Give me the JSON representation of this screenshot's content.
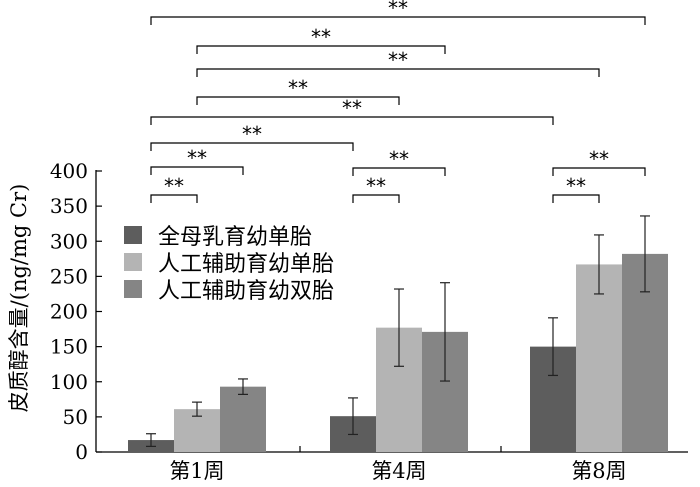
{
  "chart_data": {
    "type": "bar",
    "title": "",
    "xlabel": "",
    "ylabel": "皮质醇含量/(ng/mg Cr)",
    "ylim": [
      0,
      400
    ],
    "yticks": [
      0,
      50,
      100,
      150,
      200,
      250,
      300,
      350,
      400
    ],
    "categories": [
      "第1周",
      "第4周",
      "第8周"
    ],
    "series": [
      {
        "name": "全母乳育幼单胎",
        "color": "#5d5d5d",
        "values": [
          17,
          51,
          150
        ],
        "errors": [
          9,
          26,
          41
        ]
      },
      {
        "name": "人工辅助育幼单胎",
        "color": "#b4b4b4",
        "values": [
          61,
          177,
          267
        ],
        "errors": [
          10,
          55,
          42
        ]
      },
      {
        "name": "人工辅助育幼双胎",
        "color": "#858585",
        "values": [
          93,
          171,
          282
        ],
        "errors": [
          11,
          70,
          54
        ]
      }
    ],
    "significance_label": "**",
    "significance_brackets": [
      {
        "from": [
          0,
          0
        ],
        "to": [
          2,
          2
        ],
        "label": "**"
      },
      {
        "from": [
          0,
          1
        ],
        "to": [
          1,
          2
        ],
        "label": "**"
      },
      {
        "from": [
          0,
          1
        ],
        "to": [
          2,
          1
        ],
        "label": "**"
      },
      {
        "from": [
          0,
          1
        ],
        "to": [
          1,
          1
        ],
        "label": "**"
      },
      {
        "from": [
          0,
          0
        ],
        "to": [
          2,
          0
        ],
        "label": "**"
      },
      {
        "from": [
          0,
          0
        ],
        "to": [
          1,
          0
        ],
        "label": "**"
      },
      {
        "from": [
          0,
          0
        ],
        "to": [
          0,
          2
        ],
        "label": "**"
      },
      {
        "from": [
          0,
          0
        ],
        "to": [
          0,
          1
        ],
        "label": "**"
      },
      {
        "from": [
          1,
          0
        ],
        "to": [
          1,
          2
        ],
        "label": "**"
      },
      {
        "from": [
          1,
          0
        ],
        "to": [
          1,
          1
        ],
        "label": "**"
      },
      {
        "from": [
          2,
          0
        ],
        "to": [
          2,
          2
        ],
        "label": "**"
      },
      {
        "from": [
          2,
          0
        ],
        "to": [
          2,
          1
        ],
        "label": "**"
      }
    ]
  }
}
